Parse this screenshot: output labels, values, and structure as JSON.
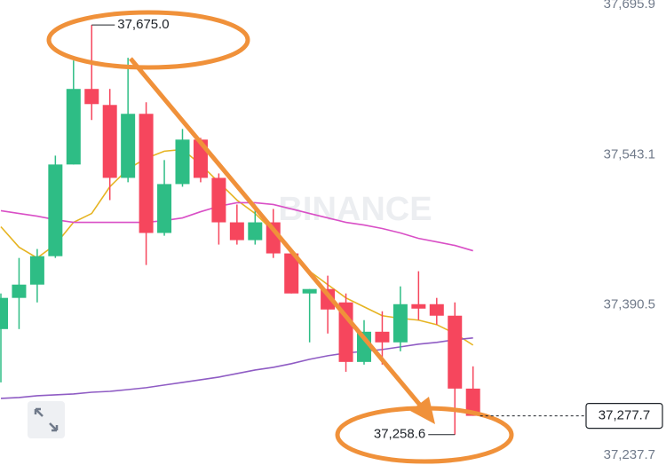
{
  "chart_data": {
    "type": "candlestick",
    "ylim": [
      37219.6,
      37700.4
    ],
    "yticks": [
      {
        "value": 37695.9,
        "label": "37,695.9"
      },
      {
        "value": 37543.1,
        "label": "37,543.1"
      },
      {
        "value": 37390.5,
        "label": "37,390.5"
      },
      {
        "value": 37237.7,
        "label": "37,237.7"
      }
    ],
    "grid": false,
    "up_color": "#2ebd85",
    "down_color": "#f6465d",
    "watermark": "BINANCE",
    "open": [
      37365.9,
      37397.6,
      37411.1,
      37440.0,
      37533.2,
      37610.0,
      37593.7,
      37519.6,
      37584.7,
      37463.6,
      37513.3,
      37558.5,
      37519.6,
      37474.4,
      37456.3,
      37474.4,
      37442.8,
      37402.1,
      37406.6,
      37393.0,
      37332.5,
      37363.2,
      37352.4,
      37391.2,
      37391.2,
      37379.5,
      37305.4
    ],
    "high": [
      37402.1,
      37438.2,
      37447.3,
      37542.2,
      37638.9,
      37675.0,
      37610.0,
      37641.6,
      37596.4,
      37537.7,
      37569.3,
      37560.3,
      37524.1,
      37492.5,
      37492.5,
      37488.0,
      37447.3,
      37406.6,
      37420.2,
      37402.1,
      37375.0,
      37384.0,
      37409.3,
      37424.7,
      37397.6,
      37393.0,
      37328.0
    ],
    "low": [
      37311.7,
      37365.9,
      37393.0,
      37438.2,
      37533.2,
      37578.4,
      37497.0,
      37515.1,
      37431.0,
      37460.8,
      37510.6,
      37515.1,
      37451.8,
      37451.8,
      37451.8,
      37438.2,
      37402.1,
      37352.4,
      37361.4,
      37322.5,
      37329.8,
      37329.8,
      37343.3,
      37375.0,
      37370.4,
      37258.6,
      37277.7
    ],
    "close": [
      37397.6,
      37411.1,
      37440.0,
      37533.2,
      37610.0,
      37594.6,
      37519.6,
      37584.7,
      37463.6,
      37513.3,
      37558.5,
      37519.6,
      37474.4,
      37456.3,
      37474.4,
      37442.8,
      37402.1,
      37406.6,
      37385.8,
      37332.5,
      37363.2,
      37352.4,
      37391.2,
      37386.7,
      37379.5,
      37305.4,
      37277.7
    ],
    "lines": [
      {
        "color": "#e6b422",
        "values": [
          37469.9,
          37449.1,
          37438.2,
          37451.8,
          37474.4,
          37483.4,
          37510.6,
          37528.6,
          37539.5,
          37546.7,
          37548.5,
          37533.2,
          37515.1,
          37497.0,
          37483.4,
          37465.4,
          37442.8,
          37424.7,
          37411.1,
          37397.6,
          37388.5,
          37379.5,
          37376.8,
          37375.0,
          37370.4,
          37361.4,
          37349.6
        ]
      },
      {
        "color": "#d94fc6",
        "values": [
          37486.2,
          37483.4,
          37480.7,
          37477.1,
          37474.4,
          37474.4,
          37474.4,
          37474.4,
          37474.4,
          37476.2,
          37478.9,
          37485.2,
          37490.7,
          37494.3,
          37494.3,
          37492.5,
          37488.0,
          37483.4,
          37478.9,
          37474.4,
          37471.7,
          37468.1,
          37463.6,
          37458.1,
          37454.5,
          37450.9,
          37445.5
        ]
      },
      {
        "color": "#8f5cc4",
        "values": [
          37295.4,
          37296.3,
          37298.1,
          37299.0,
          37299.9,
          37301.7,
          37302.6,
          37304.4,
          37306.3,
          37309.0,
          37311.7,
          37314.4,
          37317.1,
          37320.7,
          37324.3,
          37327.0,
          37330.7,
          37335.2,
          37338.8,
          37341.5,
          37343.3,
          37345.1,
          37347.8,
          37350.6,
          37352.4,
          37355.1,
          37356.9
        ]
      }
    ],
    "annotations": [
      {
        "value": 37675.0,
        "label": "37,675.0"
      },
      {
        "value": 37258.6,
        "label": "37,258.6"
      }
    ],
    "last_price": {
      "value": 37277.7,
      "label": "37,277.7"
    }
  }
}
